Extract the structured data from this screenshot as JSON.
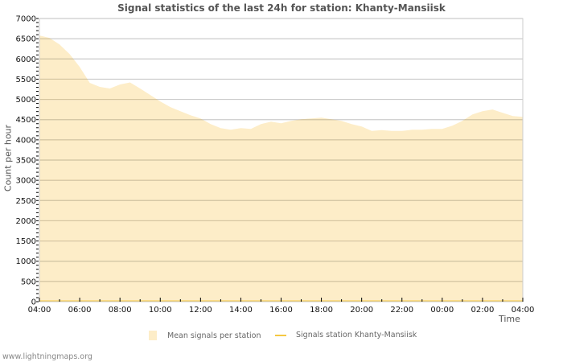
{
  "title": "Signal statistics of the last 24h for station: Khanty-Mansiisk",
  "footer": "www.lightningmaps.org",
  "colors": {
    "area_fill": "#fdedc8",
    "station_line": "#f5c842",
    "grid_major": "#cccccc",
    "grid_in_area": "#d6c6a0",
    "axis": "#cccccc",
    "text": "#111111",
    "label": "#555555"
  },
  "legend": [
    {
      "label": "Mean signals per station",
      "type": "area",
      "color": "#fdedc8"
    },
    {
      "label": "Signals station Khanty-Mansiisk",
      "type": "line",
      "color": "#f5c842"
    }
  ],
  "chart_data": {
    "type": "area",
    "title": "Signal statistics of the last 24h for station: Khanty-Mansiisk",
    "xlabel": "Time",
    "ylabel": "Count per hour",
    "ylim": [
      0,
      7000
    ],
    "yticks": [
      0,
      500,
      1000,
      1500,
      2000,
      2500,
      3000,
      3500,
      4000,
      4500,
      5000,
      5500,
      6000,
      6500,
      7000
    ],
    "xticks": [
      "04:00",
      "06:00",
      "08:00",
      "10:00",
      "12:00",
      "14:00",
      "16:00",
      "18:00",
      "20:00",
      "22:00",
      "00:00",
      "02:00",
      "04:00"
    ],
    "grid": true,
    "legend_position": "bottom",
    "x": [
      "04:00",
      "04:30",
      "05:00",
      "05:30",
      "06:00",
      "06:30",
      "07:00",
      "07:30",
      "08:00",
      "08:30",
      "09:00",
      "09:30",
      "10:00",
      "10:30",
      "11:00",
      "11:30",
      "12:00",
      "12:30",
      "13:00",
      "13:30",
      "14:00",
      "14:30",
      "15:00",
      "15:30",
      "16:00",
      "16:30",
      "17:00",
      "17:30",
      "18:00",
      "18:30",
      "19:00",
      "19:30",
      "20:00",
      "20:30",
      "21:00",
      "21:30",
      "22:00",
      "22:30",
      "23:00",
      "23:30",
      "00:00",
      "00:30",
      "01:00",
      "01:30",
      "02:00",
      "02:30",
      "03:00",
      "03:30",
      "04:00"
    ],
    "series": [
      {
        "name": "Mean signals per station",
        "type": "area",
        "values": [
          6580,
          6520,
          6360,
          6120,
          5800,
          5410,
          5310,
          5270,
          5370,
          5420,
          5270,
          5110,
          4950,
          4810,
          4710,
          4610,
          4530,
          4390,
          4290,
          4250,
          4290,
          4270,
          4390,
          4450,
          4410,
          4470,
          4510,
          4530,
          4550,
          4510,
          4470,
          4390,
          4330,
          4220,
          4240,
          4220,
          4220,
          4250,
          4250,
          4270,
          4270,
          4350,
          4470,
          4630,
          4710,
          4750,
          4670,
          4590,
          4570
        ]
      },
      {
        "name": "Signals station Khanty-Mansiisk",
        "type": "line",
        "values": [
          0,
          0,
          0,
          0,
          0,
          0,
          0,
          0,
          0,
          0,
          0,
          0,
          0,
          0,
          0,
          0,
          0,
          0,
          0,
          0,
          0,
          0,
          0,
          0,
          0,
          0,
          0,
          0,
          0,
          0,
          0,
          0,
          0,
          0,
          0,
          0,
          0,
          0,
          0,
          0,
          0,
          0,
          0,
          0,
          0,
          0,
          0,
          0,
          0
        ]
      }
    ]
  }
}
